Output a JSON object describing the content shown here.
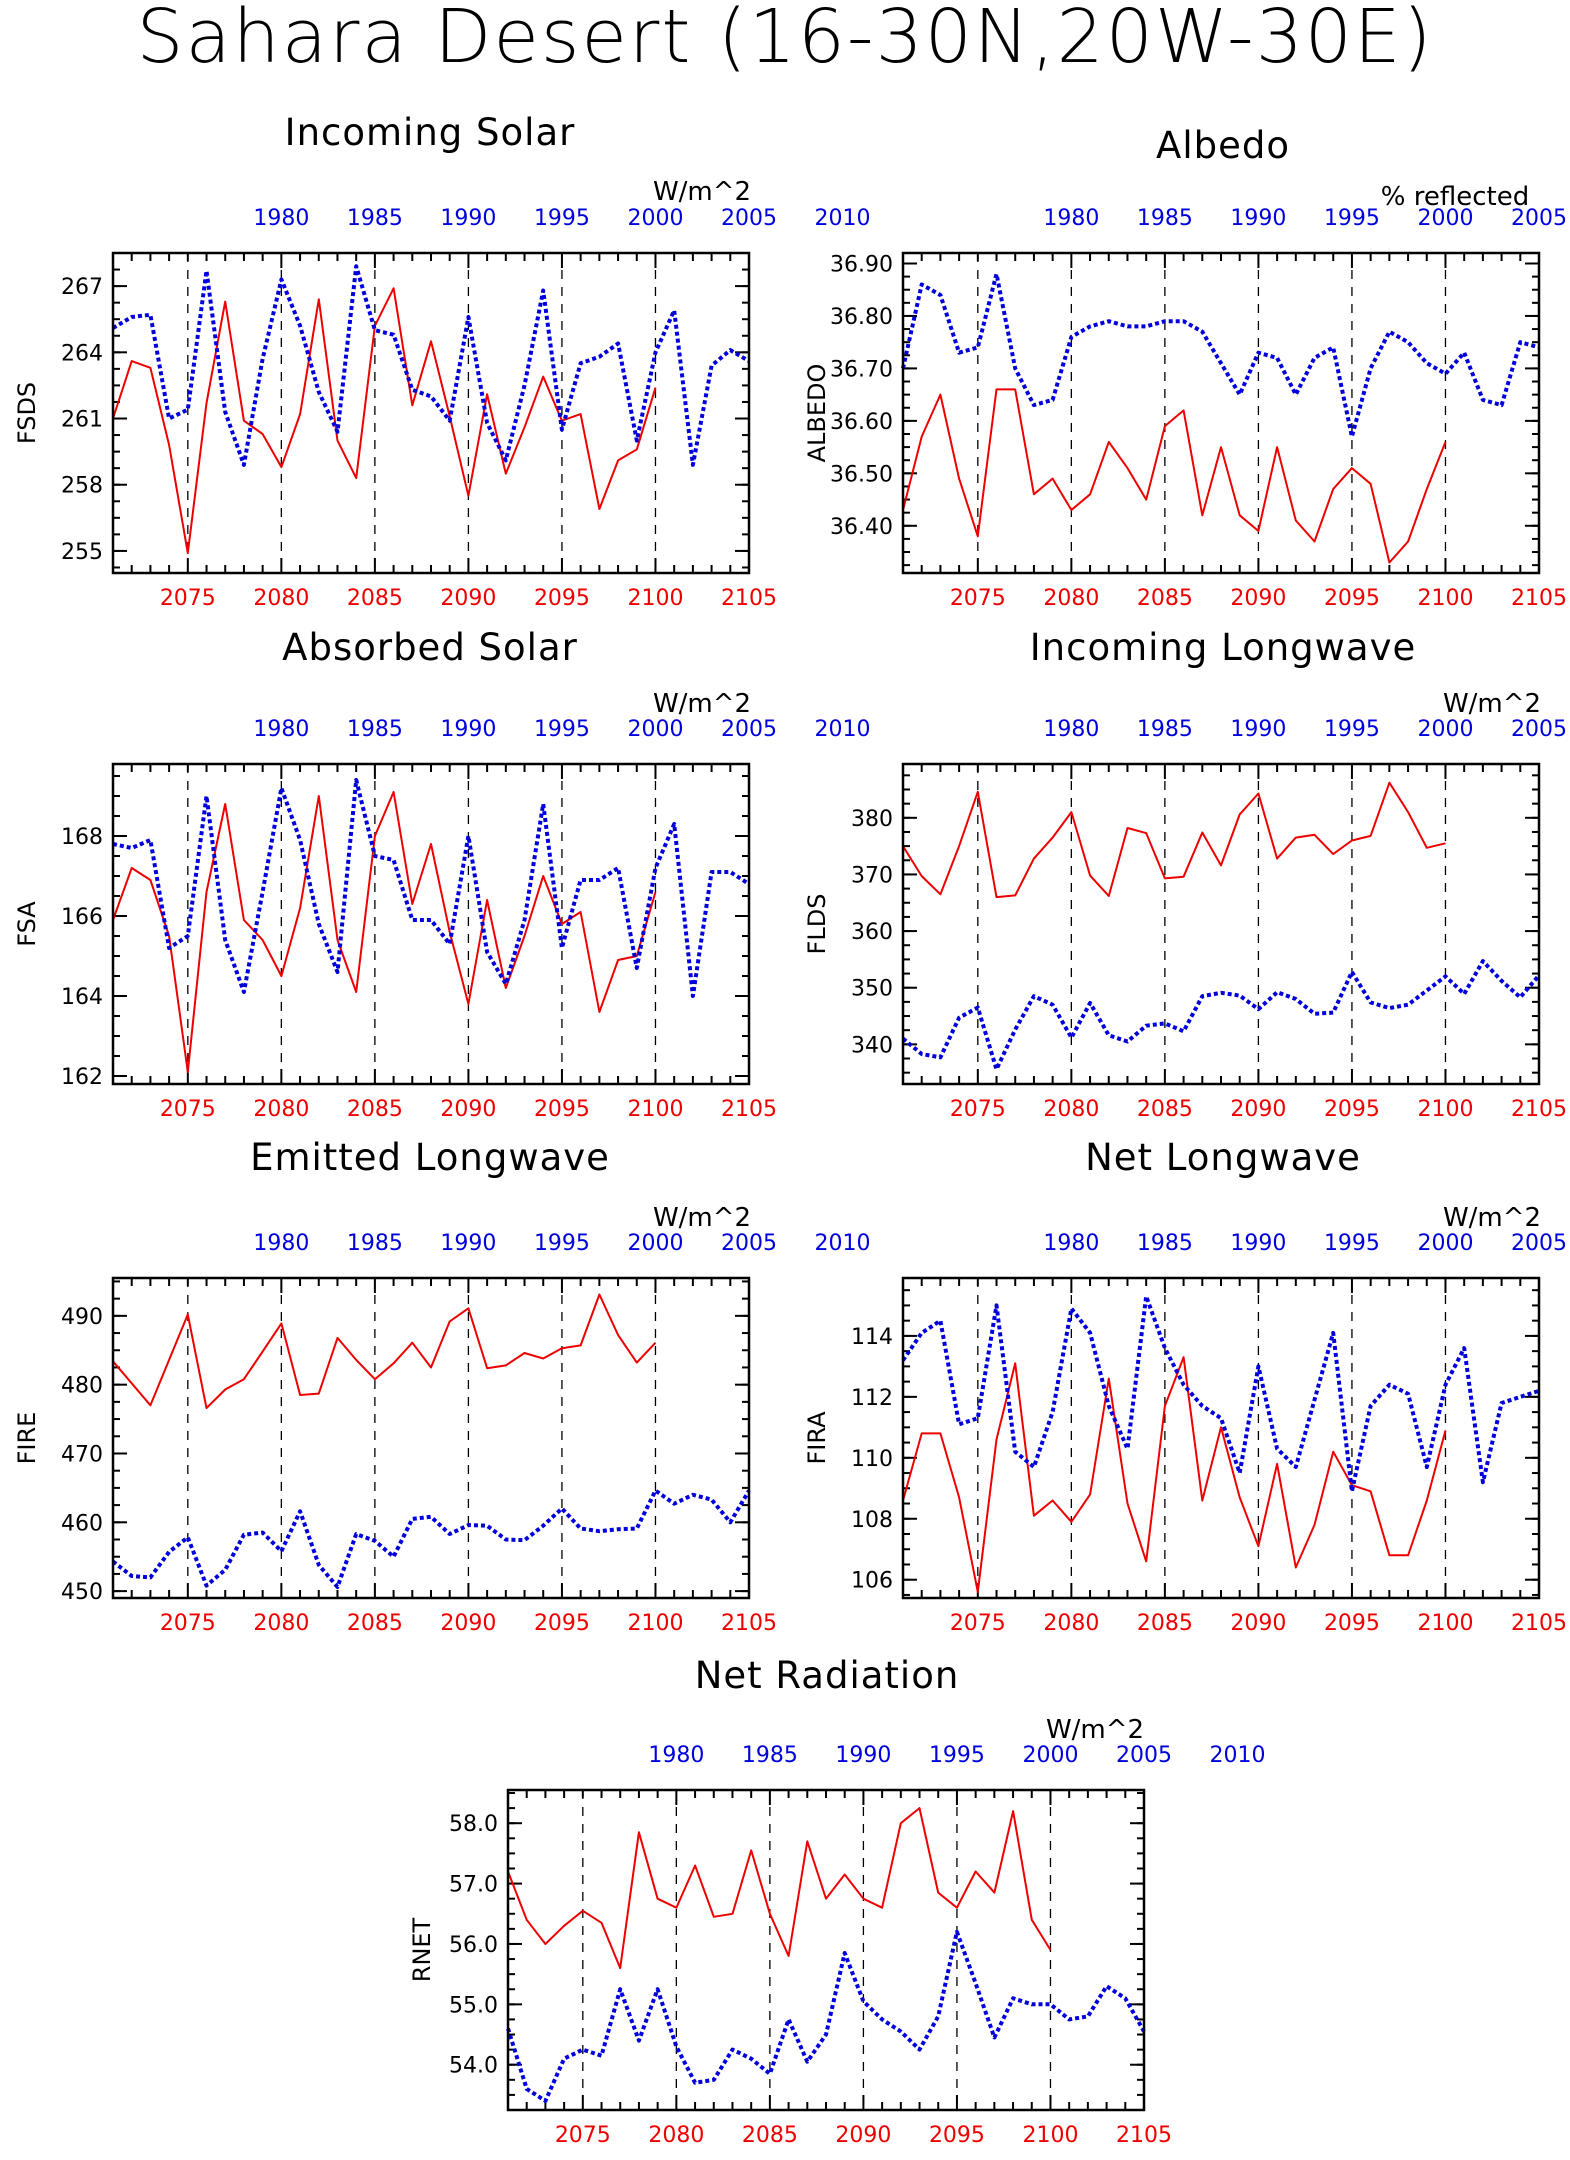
{
  "title": "Sahara Desert (16-30N,20W-30E)",
  "colors": {
    "future": "#ee0000",
    "historical": "#0000dd"
  },
  "chart_data": [
    {
      "id": "fsds",
      "type": "line",
      "title": "Incoming Solar",
      "units": "W/m^2",
      "ylabel": "FSDS",
      "xlim_bottom": [
        2071,
        2105
      ],
      "xlim_top": [
        1971,
        2005
      ],
      "xticks_bottom": [
        2075,
        2080,
        2085,
        2090,
        2095,
        2100,
        2105
      ],
      "xticks_top": [
        1980,
        1985,
        1990,
        1995,
        2000,
        2005,
        2010
      ],
      "ylim": [
        254,
        268.5
      ],
      "yticks": [
        {
          "v": 255,
          "label": "255"
        },
        {
          "v": 258,
          "label": "258"
        },
        {
          "v": 261,
          "label": "261"
        },
        {
          "v": 264,
          "label": "264"
        },
        {
          "v": 267,
          "label": "267"
        }
      ],
      "series": [
        {
          "x_start": 2071,
          "values": [
            261.0,
            263.6,
            263.3,
            259.8,
            254.9,
            261.7,
            266.3,
            260.9,
            260.3,
            258.8,
            261.2,
            266.4,
            260.0,
            258.3,
            265.2,
            266.9,
            261.6,
            264.5,
            261.1,
            257.5,
            262.1,
            258.5,
            260.6,
            262.9,
            260.9,
            261.2,
            256.9,
            259.1,
            259.6,
            262.4
          ]
        },
        {
          "x_start": 2071,
          "values": [
            265.1,
            265.6,
            265.7,
            261.0,
            261.4,
            267.7,
            261.3,
            258.9,
            263.7,
            267.3,
            265.2,
            262.2,
            260.4,
            267.9,
            265.0,
            264.8,
            262.3,
            262.0,
            260.9,
            265.6,
            260.8,
            259.1,
            262.5,
            266.8,
            260.5,
            263.5,
            263.8,
            264.4,
            260.0,
            264.0,
            265.9,
            258.9,
            263.4,
            264.1,
            263.6
          ]
        }
      ]
    },
    {
      "id": "albedo",
      "type": "line",
      "title": "Albedo",
      "units": "% reflected",
      "ylabel": "ALBEDO",
      "xlim_bottom": [
        2071,
        2105
      ],
      "xlim_top": [
        1971,
        2005
      ],
      "xticks_bottom": [
        2075,
        2080,
        2085,
        2090,
        2095,
        2100,
        2105
      ],
      "xticks_top": [
        1980,
        1985,
        1990,
        1995,
        2000,
        2005,
        2010
      ],
      "ylim": [
        36.31,
        36.92
      ],
      "yticks": [
        {
          "v": 36.4,
          "label": "36.40"
        },
        {
          "v": 36.5,
          "label": "36.50"
        },
        {
          "v": 36.6,
          "label": "36.60"
        },
        {
          "v": 36.7,
          "label": "36.70"
        },
        {
          "v": 36.8,
          "label": "36.80"
        },
        {
          "v": 36.9,
          "label": "36.90"
        }
      ],
      "series": [
        {
          "x_start": 2071,
          "values": [
            36.43,
            36.57,
            36.65,
            36.49,
            36.38,
            36.66,
            36.66,
            36.46,
            36.49,
            36.43,
            36.46,
            36.56,
            36.51,
            36.45,
            36.59,
            36.62,
            36.42,
            36.55,
            36.42,
            36.39,
            36.55,
            36.41,
            36.37,
            36.47,
            36.51,
            36.48,
            36.33,
            36.37,
            36.47,
            36.56
          ]
        },
        {
          "x_start": 2071,
          "values": [
            36.7,
            36.86,
            36.84,
            36.73,
            36.74,
            36.88,
            36.7,
            36.63,
            36.64,
            36.76,
            36.78,
            36.79,
            36.78,
            36.78,
            36.79,
            36.79,
            36.77,
            36.71,
            36.65,
            36.73,
            36.72,
            36.65,
            36.72,
            36.74,
            36.57,
            36.7,
            36.77,
            36.75,
            36.71,
            36.69,
            36.73,
            36.64,
            36.63,
            36.75,
            36.74
          ]
        }
      ]
    },
    {
      "id": "fsa",
      "type": "line",
      "title": "Absorbed Solar",
      "units": "W/m^2",
      "ylabel": "FSA",
      "xlim_bottom": [
        2071,
        2105
      ],
      "xlim_top": [
        1971,
        2005
      ],
      "xticks_bottom": [
        2075,
        2080,
        2085,
        2090,
        2095,
        2100,
        2105
      ],
      "xticks_top": [
        1980,
        1985,
        1990,
        1995,
        2000,
        2005,
        2010
      ],
      "ylim": [
        161.8,
        169.8
      ],
      "yticks": [
        {
          "v": 162,
          "label": "162"
        },
        {
          "v": 164,
          "label": "164"
        },
        {
          "v": 166,
          "label": "166"
        },
        {
          "v": 168,
          "label": "168"
        }
      ],
      "series": [
        {
          "x_start": 2071,
          "values": [
            165.9,
            167.2,
            166.9,
            165.5,
            162.1,
            166.6,
            168.8,
            165.9,
            165.4,
            164.5,
            166.2,
            169.0,
            165.4,
            164.1,
            168.0,
            169.1,
            166.3,
            167.8,
            165.6,
            163.8,
            166.4,
            164.2,
            165.5,
            167.0,
            165.8,
            166.1,
            163.6,
            164.9,
            165.0,
            166.6
          ]
        },
        {
          "x_start": 2071,
          "values": [
            167.8,
            167.7,
            167.9,
            165.2,
            165.5,
            169.0,
            165.4,
            164.1,
            166.6,
            169.2,
            167.9,
            165.8,
            164.6,
            169.4,
            167.5,
            167.4,
            165.9,
            165.9,
            165.3,
            168.0,
            165.1,
            164.3,
            165.9,
            168.8,
            165.2,
            166.9,
            166.9,
            167.2,
            164.7,
            167.2,
            168.3,
            164.0,
            167.1,
            167.1,
            166.8
          ]
        }
      ]
    },
    {
      "id": "flds",
      "type": "line",
      "title": "Incoming Longwave",
      "units": "W/m^2",
      "ylabel": "FLDS",
      "xlim_bottom": [
        2071,
        2105
      ],
      "xlim_top": [
        1971,
        2005
      ],
      "xticks_bottom": [
        2075,
        2080,
        2085,
        2090,
        2095,
        2100,
        2105
      ],
      "xticks_top": [
        1980,
        1985,
        1990,
        1995,
        2000,
        2005,
        2010
      ],
      "ylim": [
        333,
        389.5
      ],
      "yticks": [
        {
          "v": 340,
          "label": "340"
        },
        {
          "v": 350,
          "label": "350"
        },
        {
          "v": 360,
          "label": "360"
        },
        {
          "v": 370,
          "label": "370"
        },
        {
          "v": 380,
          "label": "380"
        }
      ],
      "series": [
        {
          "x_start": 2071,
          "values": [
            375.0,
            369.7,
            366.5,
            375.0,
            384.6,
            366.0,
            366.3,
            372.8,
            376.5,
            381.0,
            369.8,
            366.2,
            378.2,
            377.3,
            369.3,
            369.6,
            377.4,
            371.6,
            380.6,
            384.3,
            372.8,
            376.5,
            377.0,
            373.6,
            376.0,
            376.8,
            386.2,
            381.0,
            374.7,
            375.5
          ]
        },
        {
          "x_start": 2071,
          "values": [
            341.0,
            338.3,
            337.7,
            344.7,
            346.5,
            335.6,
            342.6,
            348.5,
            347.0,
            341.2,
            347.3,
            341.6,
            340.5,
            343.3,
            343.7,
            342.3,
            348.5,
            349.1,
            348.6,
            346.2,
            349.2,
            348.0,
            345.4,
            345.6,
            352.8,
            347.4,
            346.4,
            347.0,
            349.5,
            352.0,
            348.9,
            354.7,
            351.2,
            348.3,
            352.2
          ]
        }
      ]
    },
    {
      "id": "fire",
      "type": "line",
      "title": "Emitted Longwave",
      "units": "W/m^2",
      "ylabel": "FIRE",
      "xlim_bottom": [
        2071,
        2105
      ],
      "xlim_top": [
        1971,
        2005
      ],
      "xticks_bottom": [
        2075,
        2080,
        2085,
        2090,
        2095,
        2100,
        2105
      ],
      "xticks_top": [
        1980,
        1985,
        1990,
        1995,
        2000,
        2005,
        2010
      ],
      "ylim": [
        449,
        495.5
      ],
      "yticks": [
        {
          "v": 450,
          "label": "450"
        },
        {
          "v": 460,
          "label": "460"
        },
        {
          "v": 470,
          "label": "470"
        },
        {
          "v": 480,
          "label": "480"
        },
        {
          "v": 490,
          "label": "490"
        }
      ],
      "series": [
        {
          "x_start": 2071,
          "values": [
            483.4,
            480.2,
            477.0,
            483.6,
            490.2,
            476.6,
            479.3,
            480.8,
            484.8,
            488.9,
            478.5,
            478.7,
            486.8,
            483.6,
            480.8,
            483.1,
            486.1,
            482.5,
            489.2,
            491.1,
            482.4,
            482.8,
            484.6,
            483.8,
            485.3,
            485.7,
            493.1,
            487.2,
            483.2,
            486.1
          ]
        },
        {
          "x_start": 2071,
          "values": [
            454.3,
            452.2,
            452.0,
            455.7,
            457.8,
            450.8,
            453.1,
            458.2,
            458.5,
            455.8,
            461.6,
            453.8,
            450.6,
            458.3,
            457.3,
            455.0,
            460.5,
            460.8,
            458.3,
            459.6,
            459.5,
            457.5,
            457.4,
            459.5,
            462.0,
            459.1,
            458.7,
            459.0,
            459.1,
            464.6,
            462.7,
            464.0,
            463.3,
            460.0,
            464.6
          ]
        }
      ]
    },
    {
      "id": "fira",
      "type": "line",
      "title": "Net Longwave",
      "units": "W/m^2",
      "ylabel": "FIRA",
      "xlim_bottom": [
        2071,
        2105
      ],
      "xlim_top": [
        1971,
        2005
      ],
      "xticks_bottom": [
        2075,
        2080,
        2085,
        2090,
        2095,
        2100,
        2105
      ],
      "xticks_top": [
        1980,
        1985,
        1990,
        1995,
        2000,
        2005,
        2010
      ],
      "ylim": [
        105.4,
        115.9
      ],
      "yticks": [
        {
          "v": 106,
          "label": "106"
        },
        {
          "v": 108,
          "label": "108"
        },
        {
          "v": 110,
          "label": "110"
        },
        {
          "v": 112,
          "label": "112"
        },
        {
          "v": 114,
          "label": "114"
        }
      ],
      "series": [
        {
          "x_start": 2071,
          "values": [
            108.6,
            110.8,
            110.8,
            108.7,
            105.6,
            110.6,
            113.1,
            108.1,
            108.6,
            107.9,
            108.8,
            112.6,
            108.5,
            106.6,
            111.7,
            113.3,
            108.6,
            111.0,
            108.7,
            107.1,
            109.8,
            106.4,
            107.8,
            110.2,
            109.1,
            108.9,
            106.8,
            106.8,
            108.6,
            110.9
          ]
        },
        {
          "x_start": 2071,
          "values": [
            113.2,
            114.1,
            114.5,
            111.1,
            111.3,
            115.0,
            110.2,
            109.7,
            111.5,
            114.9,
            114.1,
            111.7,
            110.3,
            115.3,
            113.6,
            112.4,
            111.7,
            111.3,
            109.5,
            113.0,
            110.3,
            109.7,
            111.9,
            114.1,
            108.9,
            111.7,
            112.4,
            112.1,
            109.7,
            112.4,
            113.6,
            109.2,
            111.8,
            112.0,
            112.2
          ]
        }
      ]
    },
    {
      "id": "rnet",
      "type": "line",
      "title": "Net Radiation",
      "units": "W/m^2",
      "ylabel": "RNET",
      "xlim_bottom": [
        2071,
        2105
      ],
      "xlim_top": [
        1971,
        2005
      ],
      "xticks_bottom": [
        2075,
        2080,
        2085,
        2090,
        2095,
        2100,
        2105
      ],
      "xticks_top": [
        1980,
        1985,
        1990,
        1995,
        2000,
        2005,
        2010
      ],
      "ylim": [
        53.25,
        58.55
      ],
      "yticks": [
        {
          "v": 54.0,
          "label": "54.0"
        },
        {
          "v": 55.0,
          "label": "55.0"
        },
        {
          "v": 56.0,
          "label": "56.0"
        },
        {
          "v": 57.0,
          "label": "57.0"
        },
        {
          "v": 58.0,
          "label": "58.0"
        }
      ],
      "series": [
        {
          "x_start": 2071,
          "values": [
            57.2,
            56.4,
            56.0,
            56.3,
            56.55,
            56.35,
            55.6,
            57.85,
            56.75,
            56.6,
            57.3,
            56.45,
            56.5,
            57.55,
            56.5,
            55.8,
            57.7,
            56.75,
            57.15,
            56.75,
            56.6,
            58.0,
            58.25,
            56.85,
            56.6,
            57.2,
            56.85,
            58.2,
            56.4,
            55.9
          ]
        },
        {
          "x_start": 2071,
          "values": [
            54.6,
            53.6,
            53.4,
            54.1,
            54.25,
            54.15,
            55.25,
            54.4,
            55.25,
            54.3,
            53.7,
            53.75,
            54.25,
            54.1,
            53.85,
            54.75,
            54.05,
            54.5,
            55.85,
            55.05,
            54.75,
            54.55,
            54.25,
            54.8,
            56.2,
            55.35,
            54.45,
            55.1,
            55.0,
            55.0,
            54.75,
            54.8,
            55.3,
            55.1,
            54.55
          ]
        }
      ]
    }
  ]
}
